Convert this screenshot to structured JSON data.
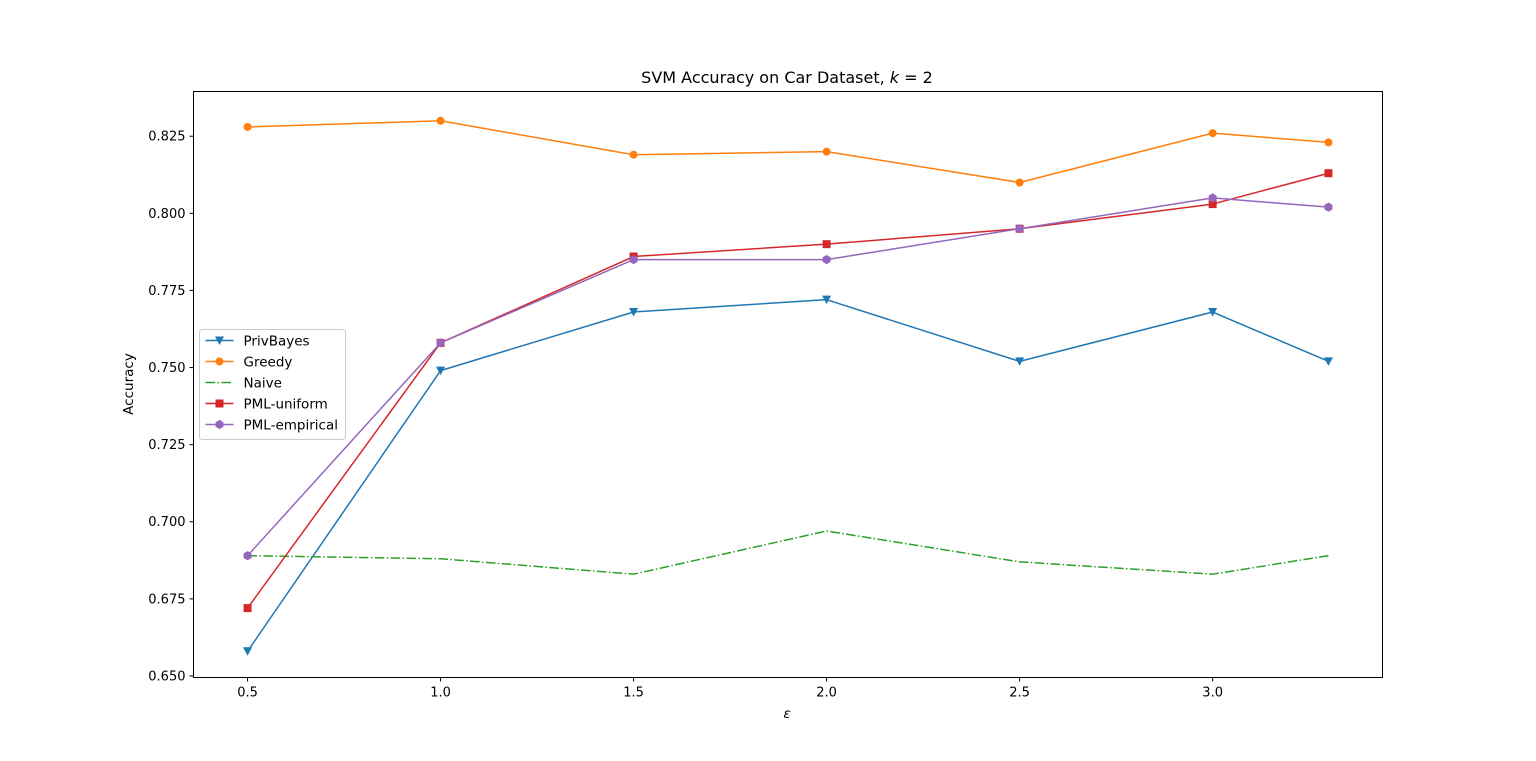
{
  "chart_data": {
    "type": "line",
    "title": "SVM Accuracy on Car Dataset, k = 2",
    "title_parts": {
      "main": "SVM Accuracy on Car Dataset, ",
      "var": "k",
      "rest": " = 2"
    },
    "xlabel": "ε",
    "ylabel": "Accuracy",
    "x": [
      0.5,
      1.0,
      1.5,
      2.0,
      2.5,
      3.0,
      3.3
    ],
    "xlim": [
      0.36,
      3.44
    ],
    "ylim": [
      0.6495,
      0.8395
    ],
    "xticks": [
      0.5,
      1.0,
      1.5,
      2.0,
      2.5,
      3.0
    ],
    "xtick_labels": [
      "0.5",
      "1.0",
      "1.5",
      "2.0",
      "2.5",
      "3.0"
    ],
    "yticks": [
      0.65,
      0.675,
      0.7,
      0.725,
      0.75,
      0.775,
      0.8,
      0.825
    ],
    "ytick_labels": [
      "0.650",
      "0.675",
      "0.700",
      "0.725",
      "0.750",
      "0.775",
      "0.800",
      "0.825"
    ],
    "grid": false,
    "legend_position": "center-left",
    "series": [
      {
        "name": "PrivBayes",
        "color": "#1f77b4",
        "marker": "triangle-down",
        "linestyle": "solid",
        "values": [
          0.658,
          0.749,
          0.768,
          0.772,
          0.752,
          0.768,
          0.752
        ]
      },
      {
        "name": "Greedy",
        "color": "#ff7f0e",
        "marker": "circle",
        "linestyle": "solid",
        "values": [
          0.828,
          0.83,
          0.819,
          0.82,
          0.81,
          0.826,
          0.823
        ]
      },
      {
        "name": "Naive",
        "color": "#2ca02c",
        "marker": "none",
        "linestyle": "dashdot",
        "values": [
          0.689,
          0.688,
          0.683,
          0.697,
          0.687,
          0.683,
          0.689
        ]
      },
      {
        "name": "PML-uniform",
        "color": "#d62728",
        "marker": "square",
        "linestyle": "solid",
        "values": [
          0.672,
          0.758,
          0.786,
          0.79,
          0.795,
          0.803,
          0.813
        ]
      },
      {
        "name": "PML-empirical",
        "color": "#9467bd",
        "marker": "hexagon",
        "linestyle": "solid",
        "values": [
          0.689,
          0.758,
          0.785,
          0.785,
          0.795,
          0.805,
          0.802
        ]
      }
    ]
  }
}
